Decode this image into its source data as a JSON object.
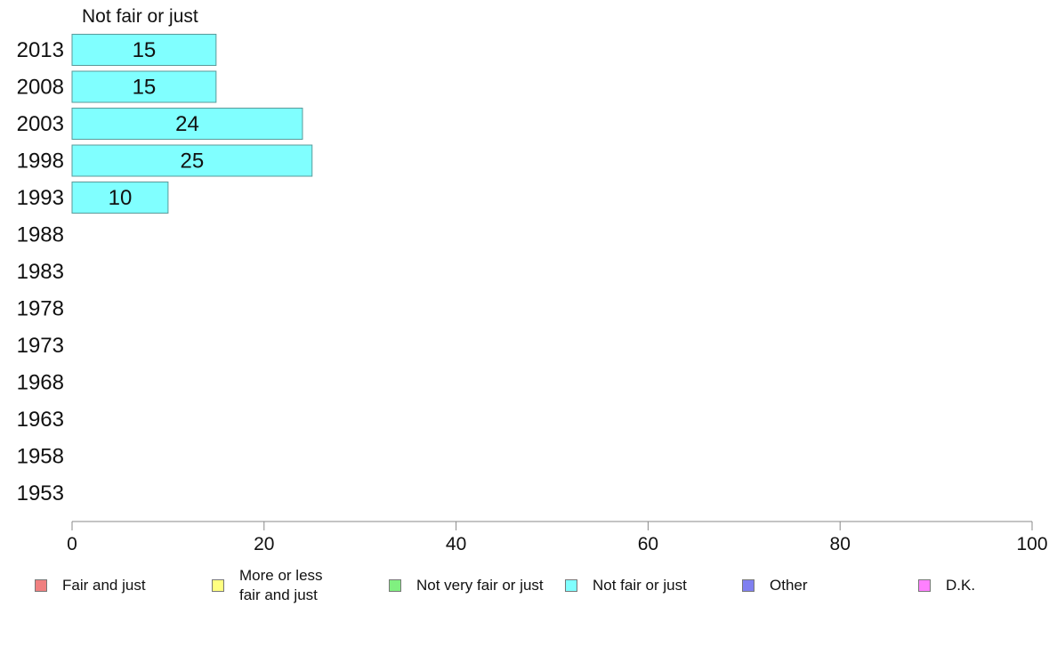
{
  "chart_data": {
    "type": "bar",
    "orientation": "horizontal",
    "title": "Not fair or just",
    "categories": [
      "2013",
      "2008",
      "2003",
      "1998",
      "1993",
      "1988",
      "1983",
      "1978",
      "1973",
      "1968",
      "1963",
      "1958",
      "1953"
    ],
    "series": [
      {
        "name": "Not fair or just",
        "values": [
          15,
          15,
          24,
          25,
          10,
          null,
          null,
          null,
          null,
          null,
          null,
          null,
          null
        ]
      }
    ],
    "data_labels": [
      "15",
      "15",
      "24",
      "25",
      "10",
      "",
      "",
      "",
      "",
      "",
      "",
      "",
      ""
    ],
    "xlim": [
      0,
      100
    ],
    "xticks": [
      0,
      20,
      40,
      60,
      80,
      100
    ],
    "grid": false,
    "legend_position": "bottom",
    "bar_color": "#80ffff"
  },
  "legend": {
    "items": [
      {
        "label": "Fair and just",
        "color": "#f08080"
      },
      {
        "label": "More or less\nfair and just",
        "color": "#ffff80"
      },
      {
        "label": "Not very fair or just",
        "color": "#80f080"
      },
      {
        "label": "Not fair or just",
        "color": "#80ffff"
      },
      {
        "label": "Other",
        "color": "#8080f0"
      },
      {
        "label": "D.K.",
        "color": "#ff80ff"
      }
    ]
  }
}
